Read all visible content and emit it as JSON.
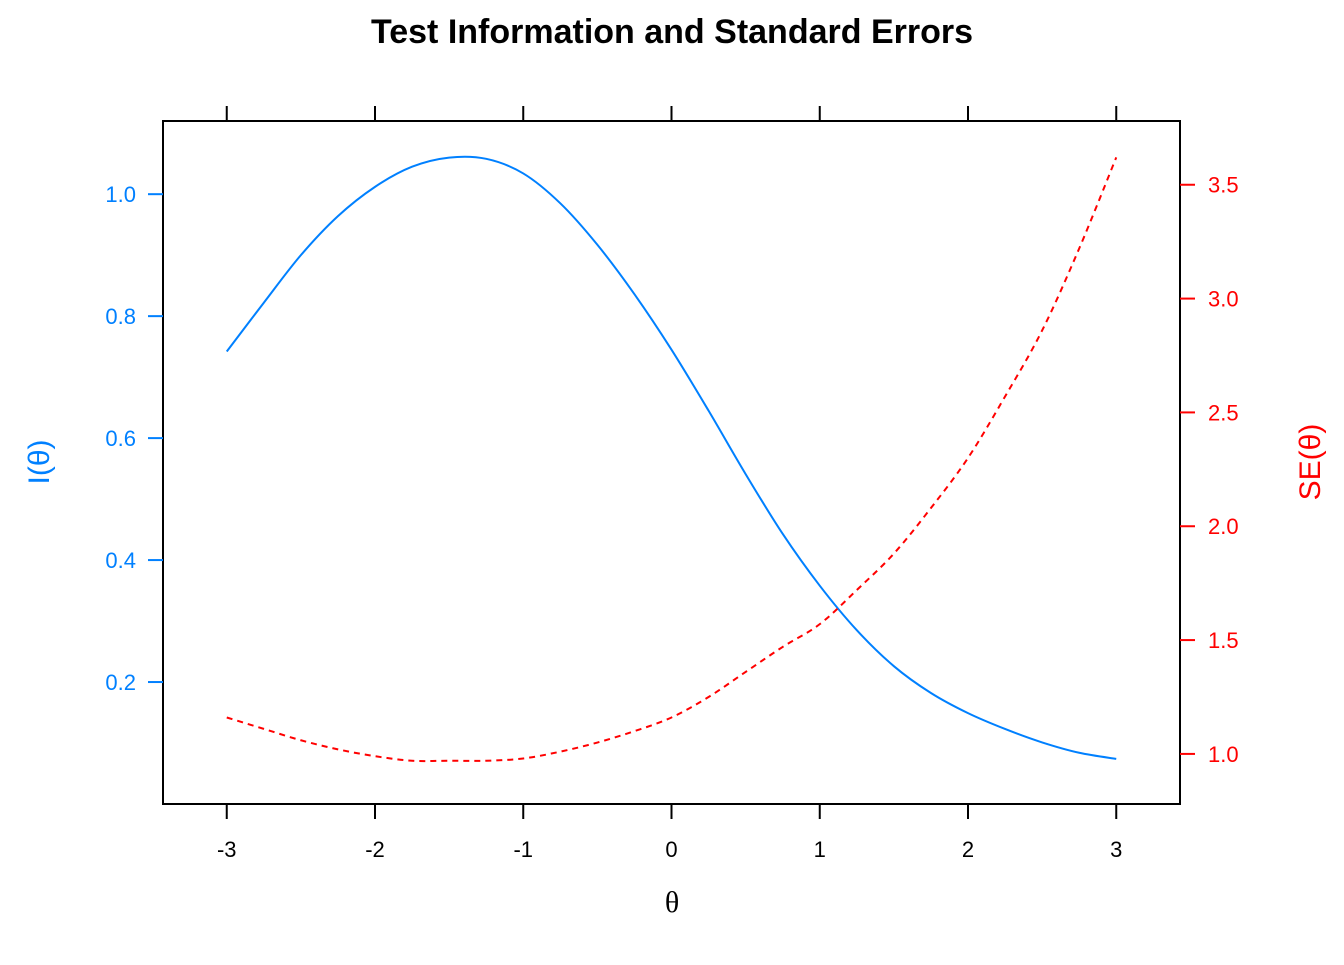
{
  "colors": {
    "information": "#0080FF",
    "standard_error": "#FF0000",
    "axis": "#000000",
    "background": "#FFFFFF"
  },
  "chart_data": {
    "type": "line",
    "title": "Test Information and Standard Errors",
    "xlabel": "θ",
    "ylabel_left": "I(θ)",
    "ylabel_right": "SE(θ)",
    "xlim": [
      -3.43,
      3.43
    ],
    "ylim_left": [
      0.0,
      1.12
    ],
    "ylim_right": [
      0.78,
      3.78
    ],
    "x_ticks": [
      -3,
      -2,
      -1,
      0,
      1,
      2,
      3
    ],
    "x_tick_labels": [
      "-3",
      "-2",
      "-1",
      "0",
      "1",
      "2",
      "3"
    ],
    "y_left_ticks": [
      0.2,
      0.4,
      0.6,
      0.8,
      1.0
    ],
    "y_left_tick_labels": [
      "0.2",
      "0.4",
      "0.6",
      "0.8",
      "1.0"
    ],
    "y_right_ticks": [
      1.0,
      1.5,
      2.0,
      2.5,
      3.0,
      3.5
    ],
    "y_right_tick_labels": [
      "1.0",
      "1.5",
      "2.0",
      "2.5",
      "3.0",
      "3.5"
    ],
    "grid": false,
    "x": [
      -3.0,
      -2.75,
      -2.5,
      -2.25,
      -2.0,
      -1.75,
      -1.5,
      -1.25,
      -1.0,
      -0.75,
      -0.5,
      -0.25,
      0.0,
      0.25,
      0.5,
      0.75,
      1.0,
      1.25,
      1.5,
      1.75,
      2.0,
      2.25,
      2.5,
      2.75,
      3.0
    ],
    "series": [
      {
        "axis": "left",
        "line_style": "solid",
        "values": [
          0.742,
          0.822,
          0.9,
          0.964,
          1.012,
          1.045,
          1.06,
          1.058,
          1.034,
          0.985,
          0.917,
          0.836,
          0.745,
          0.645,
          0.541,
          0.443,
          0.358,
          0.285,
          0.226,
          0.182,
          0.149,
          0.123,
          0.101,
          0.084,
          0.074
        ]
      },
      {
        "axis": "right",
        "line_style": "dashed",
        "values": [
          1.16,
          1.11,
          1.06,
          1.02,
          0.99,
          0.97,
          0.97,
          0.97,
          0.98,
          1.01,
          1.05,
          1.1,
          1.16,
          1.25,
          1.36,
          1.47,
          1.57,
          1.72,
          1.88,
          2.08,
          2.3,
          2.57,
          2.86,
          3.22,
          3.62
        ]
      }
    ]
  }
}
